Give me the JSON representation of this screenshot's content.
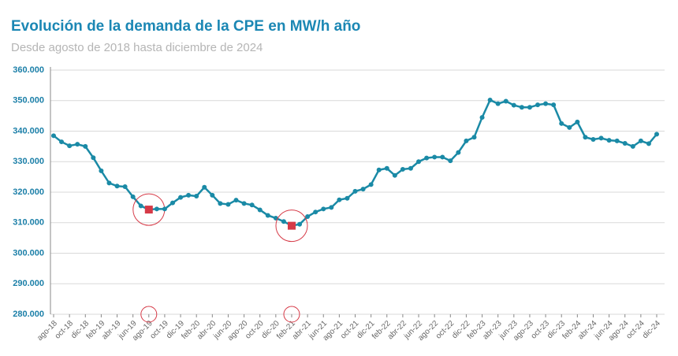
{
  "chart_data": {
    "type": "line",
    "title": "Evolución de la demanda de la CPE en MW/h año",
    "subtitle": "Desde agosto de 2018 hasta diciembre de 2024",
    "categories": [
      "ago-18",
      null,
      "oct-18",
      null,
      "dic-18",
      null,
      "feb-19",
      null,
      "abr-19",
      null,
      "jun-19",
      null,
      "ago-19",
      null,
      "oct-19",
      null,
      "dic-19",
      null,
      "feb-20",
      null,
      "abr-20",
      null,
      "jun-20",
      null,
      "ago-20",
      null,
      "oct-20",
      null,
      "dic-20",
      null,
      "feb-21",
      null,
      "abr-21",
      null,
      "jun-21",
      null,
      "ago-21",
      null,
      "oct-21",
      null,
      "dic-21",
      null,
      "feb-22",
      null,
      "abr-22",
      null,
      "jun-22",
      null,
      "ago-22",
      null,
      "oct-22",
      null,
      "dic-22",
      null,
      "feb-23",
      null,
      "abr-23",
      null,
      "jun-23",
      null,
      "ago-23",
      null,
      "oct-23",
      null,
      "dic-23",
      null,
      "feb-24",
      null,
      "abr-24",
      null,
      "jun-24",
      null,
      "ago-24",
      null,
      "oct-24",
      null,
      "dic-24"
    ],
    "values": [
      338500,
      336500,
      335200,
      335700,
      335000,
      331300,
      327000,
      323000,
      322000,
      321800,
      318500,
      315500,
      314300,
      314500,
      314500,
      316500,
      318300,
      319000,
      318700,
      321600,
      319000,
      316300,
      316000,
      317400,
      316300,
      315800,
      314200,
      312400,
      311500,
      310400,
      309000,
      309500,
      312000,
      313500,
      314500,
      315000,
      317500,
      318000,
      320300,
      321000,
      322500,
      327300,
      327800,
      325500,
      327500,
      327800,
      330000,
      331200,
      331500,
      331500,
      330300,
      333000,
      336800,
      338000,
      344500,
      350200,
      349000,
      349800,
      348500,
      347800,
      347800,
      348600,
      349000,
      348600,
      342500,
      341200,
      343000,
      338000,
      337300,
      337700,
      337000,
      336800,
      336000,
      335000,
      336800,
      335900,
      339000
    ],
    "color": "#1a8aa6",
    "highlights": [
      12,
      30
    ],
    "highlight_color": "#d63a47",
    "ylim": [
      280000,
      360000
    ],
    "yticks": [
      {
        "value": 280000,
        "label": "280.000"
      },
      {
        "value": 290000,
        "label": "290.000"
      },
      {
        "value": 300000,
        "label": "300.000"
      },
      {
        "value": 310000,
        "label": "310.000"
      },
      {
        "value": 320000,
        "label": "320.000"
      },
      {
        "value": 330000,
        "label": "330.000"
      },
      {
        "value": 340000,
        "label": "340.000"
      },
      {
        "value": 350000,
        "label": "350.000"
      },
      {
        "value": 360000,
        "label": "360.000"
      }
    ],
    "grid": true
  }
}
